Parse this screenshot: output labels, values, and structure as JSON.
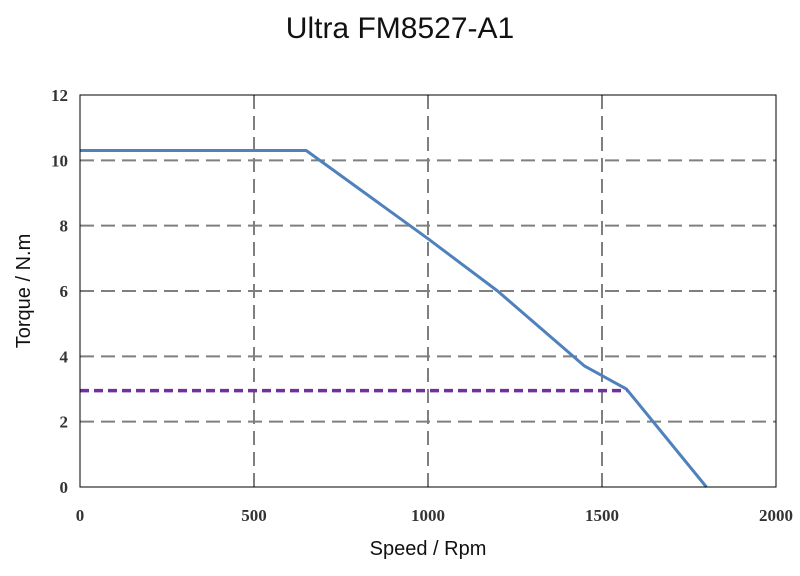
{
  "chart_data": {
    "type": "line",
    "title": "Ultra FM8527-A1",
    "xlabel": "Speed / Rpm",
    "ylabel": "Torque / N.m",
    "xlim": [
      0,
      2000
    ],
    "ylim": [
      0,
      12
    ],
    "xticks": [
      0,
      500,
      1000,
      1500,
      2000
    ],
    "yticks": [
      0,
      2,
      4,
      6,
      8,
      10,
      12
    ],
    "grid": true,
    "grid_style": "dashed",
    "series": [
      {
        "style": "solid",
        "color": "#4f81bd",
        "points": [
          [
            0,
            10.3
          ],
          [
            650,
            10.3
          ],
          [
            1000,
            7.6
          ],
          [
            1200,
            6.0
          ],
          [
            1450,
            3.7
          ],
          [
            1570,
            3.0
          ],
          [
            1800,
            0
          ]
        ]
      },
      {
        "style": "dashed",
        "color": "#7030a0",
        "points": [
          [
            0,
            2.95
          ],
          [
            1570,
            2.95
          ]
        ]
      }
    ]
  }
}
